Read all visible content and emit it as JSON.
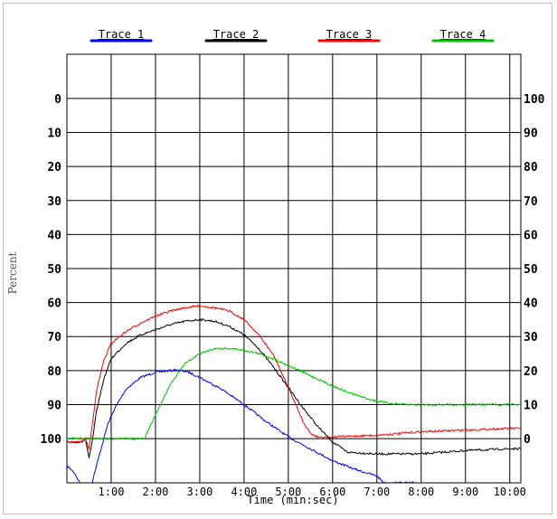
{
  "chart_data": {
    "type": "line",
    "title": "",
    "xlabel": "Time (min:sec)",
    "ylabel": "Percent",
    "x_unit": "seconds",
    "xlim": [
      0,
      615
    ],
    "x_ticks": [
      {
        "value": 60,
        "label": "1:00"
      },
      {
        "value": 120,
        "label": "2:00"
      },
      {
        "value": 180,
        "label": "3:00"
      },
      {
        "value": 240,
        "label": "4:00"
      },
      {
        "value": 300,
        "label": "5:00"
      },
      {
        "value": 360,
        "label": "6:00"
      },
      {
        "value": 420,
        "label": "7:00"
      },
      {
        "value": 480,
        "label": "8:00"
      },
      {
        "value": 540,
        "label": "9:00"
      },
      {
        "value": 600,
        "label": "10:00"
      }
    ],
    "left_axis": {
      "labels": [
        "0",
        "10",
        "20",
        "30",
        "40",
        "50",
        "60",
        "70",
        "80",
        "90",
        "100"
      ],
      "ylim": [
        -13,
        113
      ],
      "inverted": true
    },
    "right_axis": {
      "labels": [
        "100",
        "90",
        "80",
        "70",
        "60",
        "50",
        "40",
        "30",
        "20",
        "10",
        "0"
      ],
      "ylim": [
        -13,
        113
      ]
    },
    "grid": true,
    "legend_position": "top",
    "series": [
      {
        "name": "Trace 1",
        "color": "#0000ff",
        "x": [
          0,
          10,
          20,
          28,
          40,
          55,
          65,
          80,
          100,
          120,
          140,
          150,
          165,
          180,
          210,
          240,
          270,
          300,
          330,
          360,
          390,
          420,
          430,
          470
        ],
        "y": [
          108,
          110,
          114,
          118,
          108,
          96,
          91,
          85.5,
          82,
          80.5,
          80,
          79.8,
          80.5,
          82,
          85.5,
          90,
          95,
          99.5,
          103,
          106.5,
          109,
          111,
          113,
          113
        ]
      },
      {
        "name": "Trace 2",
        "color": "#000000",
        "x": [
          0,
          20,
          25,
          30,
          35,
          40,
          50,
          60,
          80,
          100,
          120,
          140,
          160,
          180,
          200,
          220,
          240,
          260,
          280,
          300,
          320,
          340,
          360,
          380,
          420,
          480,
          540,
          600,
          615
        ],
        "y": [
          101,
          101,
          100,
          106,
          100,
          92,
          82.5,
          76.5,
          72,
          69.5,
          68,
          66.5,
          65.5,
          65,
          65.5,
          67,
          69.5,
          73.5,
          79,
          85,
          91,
          96.5,
          101,
          104,
          104.5,
          104.5,
          103.5,
          103,
          103
        ]
      },
      {
        "name": "Trace 3",
        "color": "#ff0000",
        "x": [
          0,
          20,
          25,
          30,
          35,
          40,
          50,
          60,
          80,
          100,
          120,
          140,
          160,
          180,
          200,
          220,
          240,
          260,
          280,
          300,
          310,
          320,
          330,
          340,
          350,
          360,
          420,
          480,
          540,
          600,
          615
        ],
        "y": [
          101,
          101,
          100,
          103,
          95,
          86,
          77,
          72,
          68.5,
          66,
          64,
          62.5,
          61.5,
          61,
          61.5,
          62.5,
          65,
          69.5,
          75.5,
          85,
          90,
          95,
          98.5,
          99.5,
          99.5,
          99.5,
          99,
          98,
          97.5,
          97,
          97
        ]
      },
      {
        "name": "Trace 4",
        "color": "#00c000",
        "x": [
          0,
          60,
          100,
          105,
          120,
          140,
          160,
          180,
          200,
          220,
          240,
          260,
          280,
          300,
          320,
          340,
          360,
          380,
          400,
          420,
          440,
          460,
          480,
          540,
          600,
          615
        ],
        "y": [
          100,
          100,
          100,
          100,
          93,
          84,
          78,
          75,
          73.5,
          73.5,
          74,
          75,
          76.5,
          78.5,
          80.5,
          82.5,
          84.5,
          86.3,
          87.8,
          89,
          89.7,
          90,
          90,
          90,
          90,
          90
        ]
      }
    ]
  }
}
